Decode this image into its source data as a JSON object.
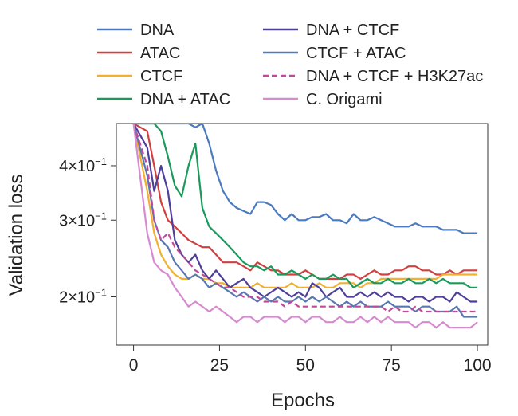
{
  "chart_data": {
    "type": "line",
    "xlabel": "Epochs",
    "ylabel": "Validation loss",
    "y_scale": "log",
    "xlim": [
      -5,
      103
    ],
    "ylim": [
      0.155,
      0.5
    ],
    "x_ticks": [
      0,
      25,
      50,
      75,
      100
    ],
    "x_tick_labels": [
      "0",
      "25",
      "50",
      "75",
      "100"
    ],
    "y_ticks": [
      {
        "value": 0.4,
        "mantissa": "4",
        "base": "10",
        "exponent": "−1"
      },
      {
        "value": 0.3,
        "mantissa": "3",
        "base": "10",
        "exponent": "−1"
      },
      {
        "value": 0.2,
        "mantissa": "2",
        "base": "10",
        "exponent": "−1"
      }
    ],
    "legend_position": "top",
    "series": [
      {
        "name": "DNA",
        "color": "#4a7abf",
        "dashed": false,
        "x": [
          0,
          4,
          6,
          8,
          10,
          12,
          14,
          16,
          18,
          20,
          22,
          24,
          26,
          28,
          30,
          32,
          34,
          36,
          38,
          40,
          42,
          44,
          46,
          48,
          50,
          52,
          54,
          56,
          58,
          60,
          62,
          64,
          66,
          68,
          70,
          72,
          74,
          76,
          78,
          80,
          82,
          84,
          86,
          88,
          90,
          92,
          94,
          96,
          98,
          100
        ],
        "values": [
          0.5,
          0.5,
          0.5,
          0.5,
          0.5,
          0.5,
          0.5,
          0.5,
          0.49,
          0.5,
          0.45,
          0.39,
          0.35,
          0.33,
          0.32,
          0.315,
          0.31,
          0.33,
          0.33,
          0.325,
          0.31,
          0.3,
          0.31,
          0.3,
          0.3,
          0.305,
          0.305,
          0.31,
          0.3,
          0.3,
          0.295,
          0.31,
          0.3,
          0.3,
          0.305,
          0.3,
          0.295,
          0.29,
          0.29,
          0.29,
          0.295,
          0.29,
          0.29,
          0.29,
          0.285,
          0.285,
          0.285,
          0.28,
          0.28,
          0.28
        ]
      },
      {
        "name": "ATAC",
        "color": "#d04040",
        "dashed": false,
        "x": [
          0,
          4,
          6,
          8,
          10,
          12,
          14,
          16,
          18,
          20,
          22,
          24,
          26,
          28,
          30,
          32,
          34,
          36,
          38,
          40,
          42,
          44,
          46,
          48,
          50,
          52,
          54,
          56,
          58,
          60,
          62,
          64,
          66,
          68,
          70,
          72,
          74,
          76,
          78,
          80,
          82,
          84,
          86,
          88,
          90,
          92,
          94,
          96,
          98,
          100
        ],
        "values": [
          0.5,
          0.48,
          0.4,
          0.33,
          0.3,
          0.29,
          0.28,
          0.27,
          0.265,
          0.26,
          0.26,
          0.25,
          0.24,
          0.24,
          0.24,
          0.235,
          0.23,
          0.24,
          0.235,
          0.23,
          0.23,
          0.225,
          0.225,
          0.225,
          0.23,
          0.225,
          0.22,
          0.22,
          0.22,
          0.22,
          0.225,
          0.225,
          0.22,
          0.225,
          0.23,
          0.225,
          0.225,
          0.23,
          0.23,
          0.235,
          0.235,
          0.23,
          0.23,
          0.225,
          0.225,
          0.23,
          0.225,
          0.23,
          0.23,
          0.23
        ]
      },
      {
        "name": "CTCF",
        "color": "#f0b030",
        "dashed": false,
        "x": [
          0,
          4,
          6,
          8,
          10,
          12,
          14,
          16,
          18,
          20,
          22,
          24,
          26,
          28,
          30,
          32,
          34,
          36,
          38,
          40,
          42,
          44,
          46,
          48,
          50,
          52,
          54,
          56,
          58,
          60,
          62,
          64,
          66,
          68,
          70,
          72,
          74,
          76,
          78,
          80,
          82,
          84,
          86,
          88,
          90,
          92,
          94,
          96,
          98,
          100
        ],
        "values": [
          0.5,
          0.35,
          0.28,
          0.25,
          0.235,
          0.225,
          0.22,
          0.22,
          0.225,
          0.22,
          0.22,
          0.215,
          0.215,
          0.21,
          0.21,
          0.21,
          0.21,
          0.215,
          0.21,
          0.21,
          0.21,
          0.21,
          0.215,
          0.21,
          0.21,
          0.21,
          0.215,
          0.21,
          0.21,
          0.215,
          0.215,
          0.215,
          0.21,
          0.215,
          0.215,
          0.22,
          0.22,
          0.22,
          0.22,
          0.22,
          0.22,
          0.22,
          0.22,
          0.22,
          0.225,
          0.225,
          0.225,
          0.225,
          0.225,
          0.225
        ]
      },
      {
        "name": "DNA + ATAC",
        "color": "#1a9a5a",
        "dashed": false,
        "x": [
          0,
          4,
          6,
          8,
          10,
          12,
          14,
          16,
          18,
          20,
          22,
          24,
          26,
          28,
          30,
          32,
          34,
          36,
          38,
          40,
          42,
          44,
          46,
          48,
          50,
          52,
          54,
          56,
          58,
          60,
          62,
          64,
          66,
          68,
          70,
          72,
          74,
          76,
          78,
          80,
          82,
          84,
          86,
          88,
          90,
          92,
          94,
          96,
          98,
          100
        ],
        "values": [
          0.5,
          0.5,
          0.5,
          0.48,
          0.42,
          0.36,
          0.34,
          0.4,
          0.45,
          0.32,
          0.29,
          0.28,
          0.27,
          0.26,
          0.25,
          0.24,
          0.235,
          0.235,
          0.23,
          0.235,
          0.225,
          0.225,
          0.23,
          0.225,
          0.22,
          0.225,
          0.22,
          0.22,
          0.225,
          0.22,
          0.22,
          0.21,
          0.215,
          0.22,
          0.215,
          0.215,
          0.22,
          0.215,
          0.215,
          0.22,
          0.215,
          0.215,
          0.22,
          0.215,
          0.22,
          0.215,
          0.215,
          0.215,
          0.21,
          0.21
        ]
      },
      {
        "name": "DNA + CTCF",
        "color": "#4e3f9a",
        "dashed": false,
        "x": [
          0,
          4,
          6,
          8,
          10,
          12,
          14,
          16,
          18,
          20,
          22,
          24,
          26,
          28,
          30,
          32,
          34,
          36,
          38,
          40,
          42,
          44,
          46,
          48,
          50,
          52,
          54,
          56,
          58,
          60,
          62,
          64,
          66,
          68,
          70,
          72,
          74,
          76,
          78,
          80,
          82,
          84,
          86,
          88,
          90,
          92,
          94,
          96,
          98,
          100
        ],
        "values": [
          0.5,
          0.44,
          0.35,
          0.4,
          0.35,
          0.27,
          0.25,
          0.24,
          0.25,
          0.23,
          0.22,
          0.23,
          0.22,
          0.21,
          0.215,
          0.22,
          0.21,
          0.205,
          0.2,
          0.205,
          0.21,
          0.205,
          0.2,
          0.205,
          0.2,
          0.215,
          0.21,
          0.2,
          0.205,
          0.21,
          0.2,
          0.2,
          0.205,
          0.2,
          0.205,
          0.2,
          0.205,
          0.2,
          0.2,
          0.195,
          0.2,
          0.2,
          0.195,
          0.2,
          0.2,
          0.195,
          0.205,
          0.2,
          0.195,
          0.195
        ]
      },
      {
        "name": "CTCF + ATAC",
        "color": "#5a78b0",
        "dashed": false,
        "x": [
          0,
          4,
          6,
          8,
          10,
          12,
          14,
          16,
          18,
          20,
          22,
          24,
          26,
          28,
          30,
          32,
          34,
          36,
          38,
          40,
          42,
          44,
          46,
          48,
          50,
          52,
          54,
          56,
          58,
          60,
          62,
          64,
          66,
          68,
          70,
          72,
          74,
          76,
          78,
          80,
          82,
          84,
          86,
          88,
          90,
          92,
          94,
          96,
          98,
          100
        ],
        "values": [
          0.5,
          0.38,
          0.3,
          0.27,
          0.26,
          0.24,
          0.23,
          0.22,
          0.225,
          0.22,
          0.21,
          0.215,
          0.21,
          0.205,
          0.2,
          0.205,
          0.2,
          0.195,
          0.2,
          0.195,
          0.2,
          0.195,
          0.195,
          0.2,
          0.195,
          0.2,
          0.195,
          0.2,
          0.195,
          0.19,
          0.195,
          0.19,
          0.195,
          0.19,
          0.19,
          0.19,
          0.195,
          0.19,
          0.19,
          0.19,
          0.185,
          0.19,
          0.19,
          0.185,
          0.185,
          0.185,
          0.19,
          0.18,
          0.18,
          0.18
        ]
      },
      {
        "name": "DNA + CTCF + H3K27ac",
        "color": "#c04a9a",
        "dashed": true,
        "x": [
          0,
          4,
          6,
          8,
          10,
          12,
          14,
          16,
          18,
          20,
          22,
          24,
          26,
          28,
          30,
          32,
          34,
          36,
          38,
          40,
          42,
          44,
          46,
          48,
          50,
          52,
          54,
          56,
          58,
          60,
          62,
          64,
          66,
          68,
          70,
          72,
          74,
          76,
          78,
          80,
          82,
          84,
          86,
          88,
          90,
          92,
          94,
          96,
          98,
          100
        ],
        "values": [
          0.5,
          0.4,
          0.3,
          0.27,
          0.28,
          0.26,
          0.25,
          0.24,
          0.23,
          0.225,
          0.22,
          0.215,
          0.21,
          0.21,
          0.205,
          0.2,
          0.2,
          0.2,
          0.195,
          0.195,
          0.195,
          0.19,
          0.195,
          0.19,
          0.19,
          0.19,
          0.19,
          0.19,
          0.19,
          0.19,
          0.19,
          0.19,
          0.19,
          0.19,
          0.19,
          0.19,
          0.185,
          0.19,
          0.185,
          0.185,
          0.19,
          0.185,
          0.185,
          0.185,
          0.185,
          0.185,
          0.185,
          0.185,
          0.185,
          0.185
        ]
      },
      {
        "name": "C. Origami",
        "color": "#d68ad0",
        "dashed": false,
        "x": [
          0,
          4,
          6,
          8,
          10,
          12,
          14,
          16,
          18,
          20,
          22,
          24,
          26,
          28,
          30,
          32,
          34,
          36,
          38,
          40,
          42,
          44,
          46,
          48,
          50,
          52,
          54,
          56,
          58,
          60,
          62,
          64,
          66,
          68,
          70,
          72,
          74,
          76,
          78,
          80,
          82,
          84,
          86,
          88,
          90,
          92,
          94,
          96,
          98,
          100
        ],
        "values": [
          0.5,
          0.28,
          0.24,
          0.23,
          0.225,
          0.21,
          0.2,
          0.19,
          0.195,
          0.19,
          0.185,
          0.19,
          0.185,
          0.18,
          0.175,
          0.18,
          0.18,
          0.175,
          0.18,
          0.18,
          0.18,
          0.175,
          0.18,
          0.18,
          0.175,
          0.18,
          0.18,
          0.175,
          0.175,
          0.18,
          0.175,
          0.175,
          0.18,
          0.175,
          0.18,
          0.175,
          0.18,
          0.175,
          0.175,
          0.175,
          0.17,
          0.175,
          0.175,
          0.17,
          0.175,
          0.17,
          0.17,
          0.17,
          0.17,
          0.175
        ]
      }
    ]
  }
}
